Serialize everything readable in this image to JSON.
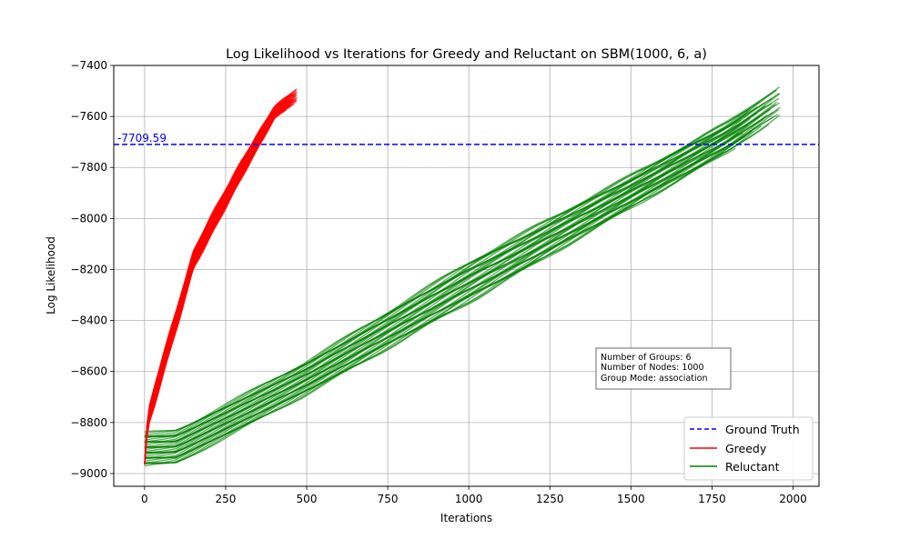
{
  "chart_data": {
    "type": "line",
    "title": "Log Likelihood vs Iterations for Greedy and Reluctant on SBM(1000, 6, a)",
    "xlabel": "Iterations",
    "ylabel": "Log Likelihood",
    "xlim": [
      -95,
      2080
    ],
    "ylim": [
      -9050,
      -7400
    ],
    "xticks": [
      0,
      250,
      500,
      750,
      1000,
      1250,
      1500,
      1750,
      2000
    ],
    "yticks": [
      -9000,
      -8800,
      -8600,
      -8400,
      -8200,
      -8000,
      -7800,
      -7600,
      -7400
    ],
    "xtick_labels": [
      "0",
      "250",
      "500",
      "750",
      "1000",
      "1250",
      "1500",
      "1750",
      "2000"
    ],
    "ytick_labels": [
      "−9000",
      "−8800",
      "−8600",
      "−8400",
      "−8200",
      "−8000",
      "−7800",
      "−7600",
      "−7400"
    ],
    "grid": true,
    "ground_truth": {
      "value": -7709.59,
      "label": "-7709.59",
      "color": "#0000ff",
      "style": "dashed"
    },
    "greedy_envelope": {
      "color": "#ff0000",
      "run_count_shown": 40,
      "x": [
        0,
        10,
        30,
        60,
        100,
        150,
        200,
        300,
        400,
        470
      ],
      "y_low": [
        -8965,
        -8820,
        -8740,
        -8600,
        -8430,
        -8200,
        -8080,
        -7840,
        -7610,
        -7540
      ],
      "y_high": [
        -8965,
        -8760,
        -8660,
        -8520,
        -8350,
        -8130,
        -8000,
        -7770,
        -7560,
        -7490
      ]
    },
    "reluctant_envelope": {
      "color": "#008000",
      "run_count_shown": 40,
      "x": [
        0,
        60,
        100,
        500,
        1000,
        1500,
        1800,
        1960
      ],
      "y_low": [
        -8970,
        -8965,
        -8960,
        -8690,
        -8330,
        -7960,
        -7740,
        -7600
      ],
      "y_high": [
        -8840,
        -8835,
        -8830,
        -8560,
        -8170,
        -7830,
        -7620,
        -7480
      ]
    },
    "legend": {
      "position": "lower-right",
      "entries": [
        {
          "label": "Ground Truth",
          "color": "#0000ff",
          "style": "dashed"
        },
        {
          "label": "Greedy",
          "color": "#ff0000",
          "style": "solid"
        },
        {
          "label": "Reluctant",
          "color": "#008000",
          "style": "solid"
        }
      ]
    },
    "annotation": {
      "lines": [
        "Number of Groups: 6",
        "Number of Nodes: 1000",
        "Group Mode: association"
      ]
    }
  }
}
